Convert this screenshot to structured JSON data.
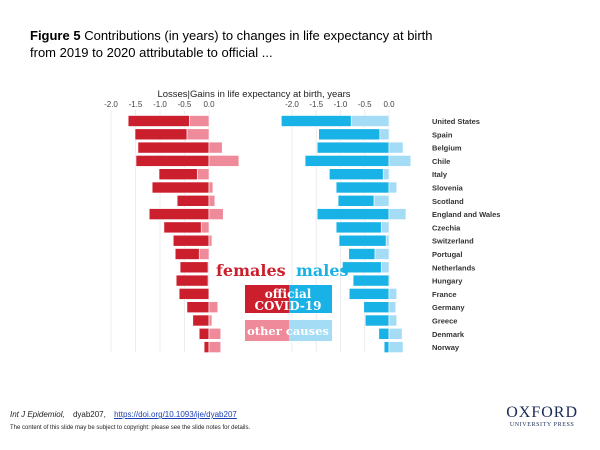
{
  "figure": {
    "label": "Figure 5",
    "caption": "Contributions (in years) to changes in life expectancy at birth from 2019 to 2020 attributable to official ..."
  },
  "footer": {
    "journal": "Int J Epidemiol",
    "article_id": "dyab207,",
    "doi_link": "https://doi.org/10.1093/ije/dyab207",
    "notice": "The content of this slide may be subject to copyright: please see the slide notes for details.",
    "publisher_line1": "OXFORD",
    "publisher_line2": "UNIVERSITY PRESS"
  },
  "chart_data": {
    "type": "bar",
    "orientation": "horizontal-stacked",
    "title": "Losses|Gains in life expectancy at birth, years",
    "xlabel": "Losses|Gains in life expectancy at birth, years",
    "ylabel": "",
    "xlim": [
      -2.3,
      0.75
    ],
    "xticks": [
      -2.0,
      -1.5,
      -1.0,
      -0.5,
      0.0
    ],
    "xtick_labels": [
      "-2.0",
      "-1.5",
      "-1.0",
      "-0.5",
      "0.0"
    ],
    "grid": true,
    "categories": [
      "United States",
      "Spain",
      "Belgium",
      "Chile",
      "Italy",
      "Slovenia",
      "Scotland",
      "England and Wales",
      "Czechia",
      "Switzerland",
      "Portugal",
      "Netherlands",
      "Hungary",
      "France",
      "Germany",
      "Greece",
      "Denmark",
      "Norway"
    ],
    "panels": [
      {
        "name": "females",
        "series": [
          {
            "name": "official COVID-19",
            "color": "#cc1f2e",
            "values": [
              -1.25,
              -1.06,
              -1.45,
              -1.49,
              -0.78,
              -1.16,
              -0.65,
              -1.22,
              -0.76,
              -0.73,
              -0.49,
              -0.57,
              -0.65,
              -0.61,
              -0.45,
              -0.33,
              -0.2,
              -0.1
            ]
          },
          {
            "name": "other causes",
            "color": "#ee8a99",
            "values": [
              -0.4,
              -0.45,
              0.27,
              0.61,
              -0.24,
              0.08,
              0.12,
              0.29,
              -0.16,
              0.06,
              -0.2,
              -0.02,
              -0.02,
              0.01,
              0.18,
              0.06,
              0.24,
              0.24
            ]
          }
        ]
      },
      {
        "name": "males",
        "series": [
          {
            "name": "official COVID-19",
            "color": "#19b2e6",
            "values": [
              -1.44,
              -1.26,
              -1.48,
              -1.73,
              -1.11,
              -1.09,
              -0.74,
              -1.48,
              -0.93,
              -0.97,
              -0.54,
              -0.8,
              -0.74,
              -0.82,
              -0.52,
              -0.49,
              -0.21,
              -0.1
            ]
          },
          {
            "name": "other causes",
            "color": "#a4dcf6",
            "values": [
              -0.78,
              -0.19,
              0.29,
              0.45,
              -0.12,
              0.16,
              -0.31,
              0.35,
              -0.16,
              -0.06,
              -0.29,
              -0.16,
              0.02,
              0.16,
              0.14,
              0.16,
              0.27,
              0.29
            ]
          }
        ]
      }
    ],
    "legend": {
      "placement": "center-bottom",
      "sex_labels": {
        "females": "females",
        "males": "males"
      },
      "official_label_line1": "official",
      "official_label_line2": "COVID-19",
      "other_label": "other causes"
    },
    "colors": {
      "females_official": "#cc1f2e",
      "females_other": "#ee8a99",
      "males_official": "#19b2e6",
      "males_other": "#a4dcf6"
    }
  }
}
